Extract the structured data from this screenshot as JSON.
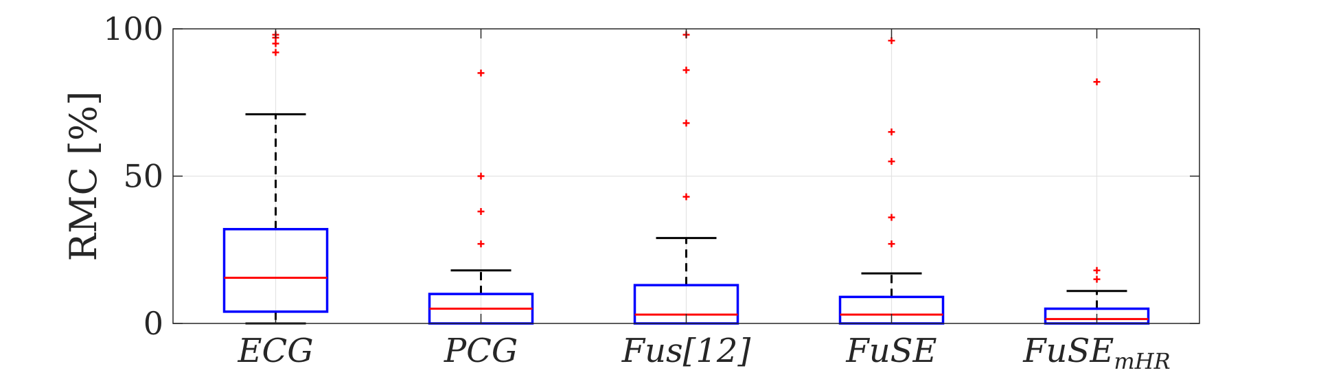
{
  "chart_data": {
    "type": "box",
    "ylabel": "RMC [%]",
    "xlabel": "",
    "ylim": [
      0,
      100
    ],
    "yticks": [
      "0",
      "50",
      "100"
    ],
    "grid": true,
    "colors": {
      "box": "#0000ff",
      "median": "#ff0000",
      "whisker": "#000000",
      "outlier": "#ff0000",
      "grid": "#e3e3e3",
      "axis": "#262626"
    },
    "categories": [
      {
        "label": "ECG",
        "lowerWhisker": 0,
        "q1": 4,
        "median": 15.5,
        "q3": 32,
        "upperWhisker": 71,
        "outliers": [
          98,
          97,
          95,
          92
        ]
      },
      {
        "label": "PCG",
        "lowerWhisker": 0,
        "q1": 0,
        "median": 5,
        "q3": 10,
        "upperWhisker": 18,
        "outliers": [
          85,
          50,
          38,
          27
        ]
      },
      {
        "label": "Fus[12]",
        "lowerWhisker": 0,
        "q1": 0,
        "median": 3,
        "q3": 13,
        "upperWhisker": 29,
        "outliers": [
          98,
          86,
          68,
          43
        ]
      },
      {
        "label": "FuSE",
        "lowerWhisker": 0,
        "q1": 0,
        "median": 3,
        "q3": 9,
        "upperWhisker": 17,
        "outliers": [
          96,
          65,
          55,
          36,
          27
        ]
      },
      {
        "label": "FuSE",
        "subscript": "mHR",
        "lowerWhisker": 0,
        "q1": 0,
        "median": 1.5,
        "q3": 5,
        "upperWhisker": 11,
        "outliers": [
          82,
          18,
          15
        ]
      }
    ]
  }
}
